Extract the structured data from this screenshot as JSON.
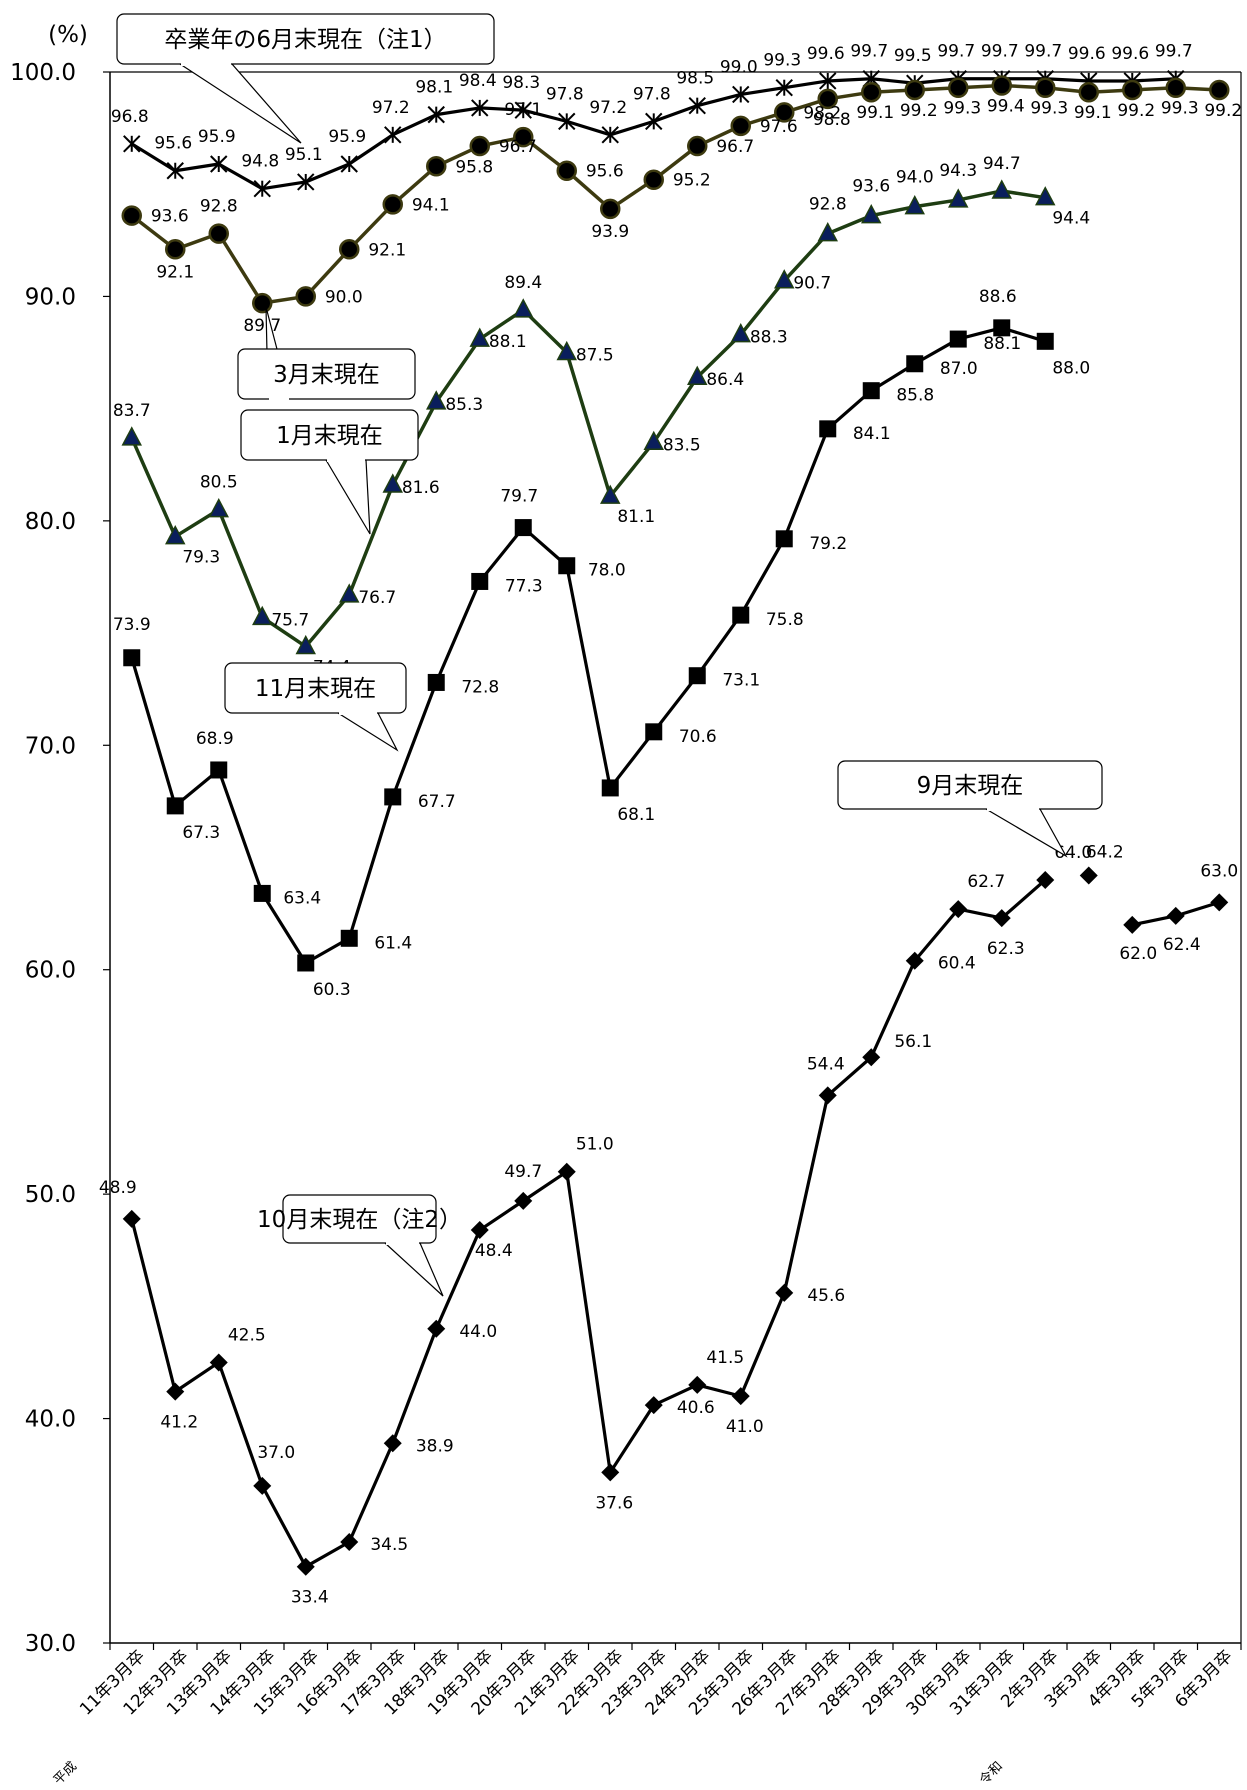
{
  "chart_data": {
    "type": "line",
    "y_unit": "(%)",
    "ylim": [
      30,
      100
    ],
    "yticks": [
      "30.0",
      "40.0",
      "50.0",
      "60.0",
      "70.0",
      "80.0",
      "90.0",
      "100.0"
    ],
    "categories": [
      "11年3月卒",
      "12年3月卒",
      "13年3月卒",
      "14年3月卒",
      "15年3月卒",
      "16年3月卒",
      "17年3月卒",
      "18年3月卒",
      "19年3月卒",
      "20年3月卒",
      "21年3月卒",
      "22年3月卒",
      "23年3月卒",
      "24年3月卒",
      "25年3月卒",
      "26年3月卒",
      "27年3月卒",
      "28年3月卒",
      "29年3月卒",
      "30年3月卒",
      "31年3月卒",
      "2年3月卒",
      "3年3月卒",
      "4年3月卒",
      "5年3月卒",
      "6年3月卒"
    ],
    "era_labels": {
      "heisei": "平成",
      "reiwa": "令和"
    },
    "grid": false,
    "series": [
      {
        "name": "卒業年の6月末現在（注1）",
        "marker": "star",
        "color": "#000000",
        "values": [
          96.8,
          95.6,
          95.9,
          94.8,
          95.1,
          95.9,
          97.2,
          98.1,
          98.4,
          98.3,
          97.8,
          97.2,
          97.8,
          98.5,
          99.0,
          99.3,
          99.6,
          99.7,
          99.5,
          99.7,
          99.7,
          99.7,
          99.6,
          99.6,
          99.7,
          null
        ]
      },
      {
        "name": "3月末現在",
        "marker": "circle",
        "color": "#3d3a10",
        "values": [
          93.6,
          92.1,
          92.8,
          89.7,
          90.0,
          92.1,
          94.1,
          95.8,
          96.7,
          97.1,
          95.6,
          93.9,
          95.2,
          96.7,
          97.6,
          98.2,
          98.8,
          99.1,
          99.2,
          99.3,
          99.4,
          99.3,
          99.1,
          99.2,
          99.3,
          99.2
        ]
      },
      {
        "name": "1月末現在",
        "marker": "triangle",
        "color": "#1e3d12",
        "values": [
          83.7,
          79.3,
          80.5,
          75.7,
          74.4,
          76.7,
          81.6,
          85.3,
          88.1,
          89.4,
          87.5,
          81.1,
          83.5,
          86.4,
          88.3,
          90.7,
          92.8,
          93.6,
          94.0,
          94.3,
          94.7,
          94.4,
          null,
          null,
          null,
          null
        ]
      },
      {
        "name": "11月末現在",
        "marker": "square",
        "color": "#000000",
        "values": [
          73.9,
          67.3,
          68.9,
          63.4,
          60.3,
          61.4,
          67.7,
          72.8,
          77.3,
          79.7,
          78.0,
          68.1,
          70.6,
          73.1,
          75.8,
          79.2,
          84.1,
          85.8,
          87.0,
          88.1,
          88.6,
          88.0,
          null,
          null,
          null,
          null
        ]
      },
      {
        "name": "9月末現在",
        "marker": "diamond",
        "color": "#000000",
        "values": [
          48.9,
          41.2,
          42.5,
          37.0,
          33.4,
          34.5,
          38.9,
          44.0,
          48.4,
          49.7,
          51.0,
          37.6,
          40.6,
          41.5,
          41.0,
          45.6,
          54.4,
          56.1,
          60.4,
          62.7,
          62.3,
          64.0,
          null,
          null,
          null,
          null
        ]
      },
      {
        "name": "10月末現在（注2）",
        "marker": "diamond",
        "color": "#000000",
        "values": [
          null,
          null,
          null,
          null,
          null,
          null,
          null,
          null,
          null,
          null,
          null,
          null,
          null,
          null,
          null,
          null,
          null,
          null,
          null,
          null,
          null,
          null,
          64.2,
          62.0,
          62.4,
          63.0
        ]
      }
    ]
  }
}
